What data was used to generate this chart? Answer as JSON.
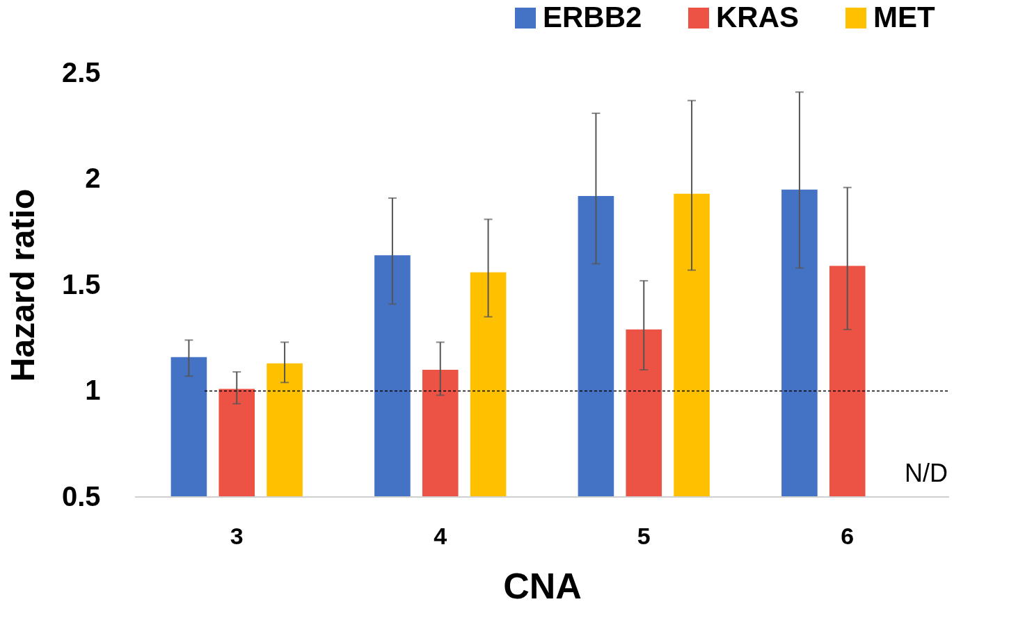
{
  "chart_data": {
    "type": "bar",
    "xlabel": "CNA",
    "ylabel": "Hazard ratio",
    "categories": [
      "3",
      "4",
      "5",
      "6"
    ],
    "series": [
      {
        "name": "ERBB2",
        "color": "#4472c4",
        "values": [
          1.16,
          1.64,
          1.92,
          1.95
        ],
        "errors": [
          [
            1.07,
            1.24
          ],
          [
            1.41,
            1.91
          ],
          [
            1.6,
            2.31
          ],
          [
            1.58,
            2.41
          ]
        ]
      },
      {
        "name": "KRAS",
        "color": "#ed5345",
        "values": [
          1.01,
          1.1,
          1.29,
          1.59
        ],
        "errors": [
          [
            0.94,
            1.09
          ],
          [
            0.98,
            1.23
          ],
          [
            1.1,
            1.52
          ],
          [
            1.29,
            1.96
          ]
        ]
      },
      {
        "name": "MET",
        "color": "#ffc000",
        "values": [
          1.13,
          1.56,
          1.93,
          null
        ],
        "errors": [
          [
            1.04,
            1.23
          ],
          [
            1.35,
            1.81
          ],
          [
            1.57,
            2.37
          ],
          null
        ]
      }
    ],
    "ylim": [
      0.5,
      2.5
    ],
    "yticks": [
      0.5,
      {
        "value": 1,
        "label": "1"
      },
      1.5,
      {
        "value": 2,
        "label": "2"
      },
      2.5
    ],
    "grid": false,
    "legend": "top right",
    "ref_lines": [
      {
        "axis": "y",
        "value": 1,
        "line_style": "dashed",
        "color": "#000000"
      }
    ],
    "annotations": [
      "N/D"
    ]
  }
}
